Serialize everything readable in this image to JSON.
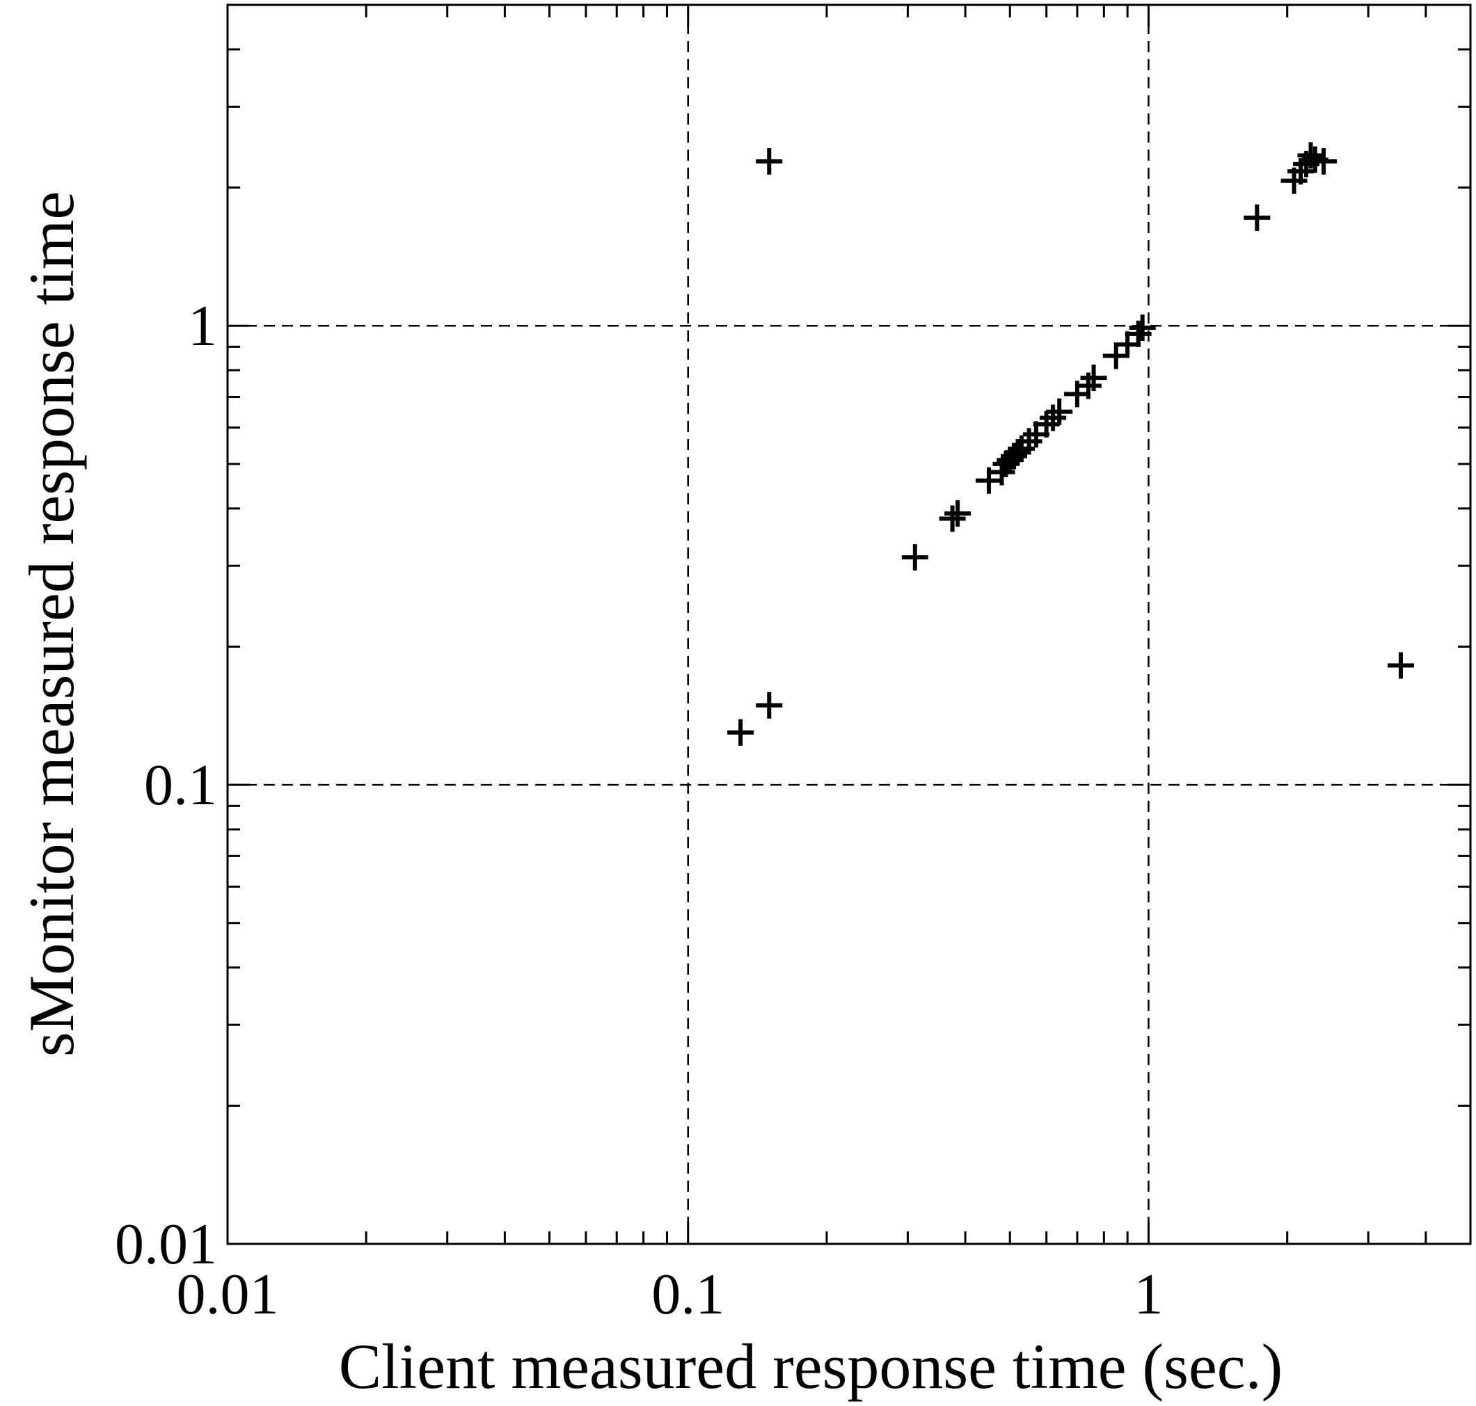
{
  "chart_data": {
    "type": "scatter",
    "title": "",
    "xlabel": "Client measured response time (sec.)",
    "ylabel": "sMonitor measured response time",
    "x_scale": "log",
    "y_scale": "log",
    "xlim": [
      0.01,
      5
    ],
    "ylim": [
      0.01,
      5
    ],
    "x_ticks": [
      {
        "value": 0.01,
        "label": "0.01"
      },
      {
        "value": 0.1,
        "label": "0.1"
      },
      {
        "value": 1,
        "label": "1"
      }
    ],
    "y_ticks": [
      {
        "value": 0.01,
        "label": "0.01"
      },
      {
        "value": 0.1,
        "label": "0.1"
      },
      {
        "value": 1,
        "label": "1"
      }
    ],
    "grid": "dashed at major decades (0.1, 1)",
    "marker": "plus",
    "color": "#000000",
    "points": [
      [
        0.15,
        2.28
      ],
      [
        0.13,
        0.13
      ],
      [
        0.15,
        0.149
      ],
      [
        3.53,
        0.182
      ],
      [
        0.311,
        0.313
      ],
      [
        0.375,
        0.38
      ],
      [
        0.385,
        0.39
      ],
      [
        0.45,
        0.46
      ],
      [
        0.48,
        0.48
      ],
      [
        0.49,
        0.5
      ],
      [
        0.5,
        0.51
      ],
      [
        0.51,
        0.52
      ],
      [
        0.52,
        0.53
      ],
      [
        0.53,
        0.54
      ],
      [
        0.55,
        0.56
      ],
      [
        0.57,
        0.58
      ],
      [
        0.6,
        0.61
      ],
      [
        0.62,
        0.63
      ],
      [
        0.64,
        0.65
      ],
      [
        0.7,
        0.71
      ],
      [
        0.74,
        0.74
      ],
      [
        0.76,
        0.77
      ],
      [
        0.85,
        0.86
      ],
      [
        0.9,
        0.91
      ],
      [
        0.95,
        0.96
      ],
      [
        0.97,
        0.99
      ],
      [
        1.72,
        1.72
      ],
      [
        2.07,
        2.07
      ],
      [
        2.14,
        2.17
      ],
      [
        2.2,
        2.25
      ],
      [
        2.25,
        2.35
      ],
      [
        2.3,
        2.3
      ],
      [
        2.4,
        2.28
      ]
    ]
  }
}
